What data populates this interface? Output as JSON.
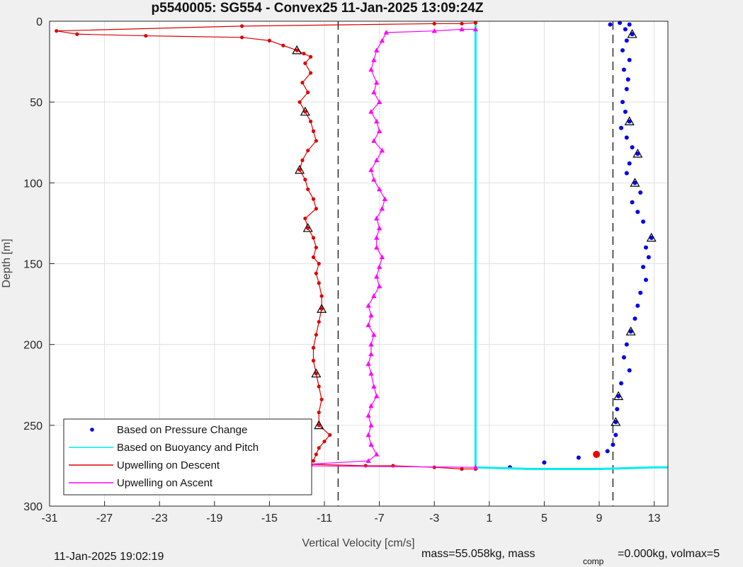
{
  "chart_data": {
    "type": "line",
    "title": "p5540005: SG554 - Convex25 11-Jan-2025 13:09:24Z",
    "xlabel": "Vertical Velocity [cm/s]",
    "ylabel": "Depth [m]",
    "xlim": [
      -31,
      14
    ],
    "ylim": [
      300,
      0
    ],
    "y_reversed": true,
    "xticks": [
      -31,
      -27,
      -23,
      -19,
      -15,
      -11,
      -7,
      -3,
      1,
      5,
      9,
      13
    ],
    "yticks": [
      0,
      50,
      100,
      150,
      200,
      250,
      300
    ],
    "grid": true,
    "legend": {
      "placement": "bottom-left",
      "entries": [
        "Based on Pressure Change",
        "Based on Buoyancy and Pitch",
        "Upwelling on Descent",
        "Upwelling on Ascent"
      ]
    },
    "vlines_dashed": [
      -10,
      10
    ],
    "series": [
      {
        "name": "Based on Pressure Change",
        "color": "#0000ee",
        "style": "dots",
        "points": [
          [
            9.8,
            2
          ],
          [
            10.5,
            1
          ],
          [
            11.2,
            2
          ],
          [
            10.9,
            5
          ],
          [
            11.4,
            8
          ],
          [
            11.0,
            12
          ],
          [
            10.7,
            18
          ],
          [
            11.2,
            24
          ],
          [
            10.8,
            30
          ],
          [
            11.1,
            36
          ],
          [
            11.0,
            42
          ],
          [
            10.7,
            50
          ],
          [
            10.9,
            56
          ],
          [
            11.2,
            62
          ],
          [
            10.6,
            66
          ],
          [
            11.0,
            72
          ],
          [
            11.4,
            78
          ],
          [
            11.8,
            82
          ],
          [
            11.2,
            88
          ],
          [
            11.0,
            94
          ],
          [
            11.6,
            100
          ],
          [
            12.0,
            106
          ],
          [
            11.4,
            112
          ],
          [
            11.8,
            118
          ],
          [
            12.2,
            124
          ],
          [
            12.8,
            134
          ],
          [
            12.4,
            140
          ],
          [
            12.6,
            146
          ],
          [
            12.2,
            152
          ],
          [
            12.4,
            160
          ],
          [
            12.0,
            168
          ],
          [
            11.8,
            176
          ],
          [
            11.6,
            184
          ],
          [
            11.3,
            192
          ],
          [
            11.0,
            200
          ],
          [
            10.8,
            208
          ],
          [
            11.2,
            216
          ],
          [
            10.6,
            224
          ],
          [
            10.4,
            232
          ],
          [
            10.3,
            240
          ],
          [
            10.2,
            248
          ],
          [
            10.2,
            256
          ],
          [
            10.0,
            262
          ],
          [
            9.6,
            266
          ],
          [
            8.8,
            268
          ],
          [
            7.5,
            270
          ],
          [
            5.0,
            273
          ],
          [
            2.5,
            276
          ]
        ]
      },
      {
        "name": "Based on Buoyancy and Pitch",
        "color": "#00eeee",
        "style": "line",
        "points": [
          [
            0,
            2
          ],
          [
            0,
            50
          ],
          [
            0,
            100
          ],
          [
            0,
            150
          ],
          [
            0,
            200
          ],
          [
            0,
            250
          ],
          [
            0,
            276
          ],
          [
            4,
            277
          ],
          [
            9,
            277
          ],
          [
            13,
            276
          ],
          [
            14,
            276
          ]
        ]
      },
      {
        "name": "Upwelling on Descent",
        "color": "#dd0000",
        "style": "line-dots",
        "points": [
          [
            0,
            1
          ],
          [
            -1,
            1.5
          ],
          [
            -3,
            1.5
          ],
          [
            -17,
            3
          ],
          [
            -30.5,
            6
          ],
          [
            -29,
            8
          ],
          [
            -24,
            9
          ],
          [
            -17,
            10
          ],
          [
            -15,
            12
          ],
          [
            -14,
            15
          ],
          [
            -13,
            18
          ],
          [
            -12.5,
            20
          ],
          [
            -12,
            22
          ],
          [
            -12.4,
            26
          ],
          [
            -12,
            32
          ],
          [
            -12.6,
            38
          ],
          [
            -12.2,
            44
          ],
          [
            -12.8,
            50
          ],
          [
            -12.4,
            56
          ],
          [
            -12.0,
            62
          ],
          [
            -11.8,
            68
          ],
          [
            -11.6,
            74
          ],
          [
            -12.2,
            80
          ],
          [
            -12.6,
            86
          ],
          [
            -12.8,
            92
          ],
          [
            -12.4,
            98
          ],
          [
            -12.2,
            104
          ],
          [
            -11.8,
            110
          ],
          [
            -11.6,
            116
          ],
          [
            -12.4,
            122
          ],
          [
            -12.2,
            128
          ],
          [
            -11.8,
            134
          ],
          [
            -11.6,
            140
          ],
          [
            -11.8,
            146
          ],
          [
            -11.4,
            150
          ],
          [
            -11.6,
            156
          ],
          [
            -11.4,
            162
          ],
          [
            -11.2,
            170
          ],
          [
            -11.2,
            178
          ],
          [
            -11.4,
            186
          ],
          [
            -11.6,
            194
          ],
          [
            -11.8,
            202
          ],
          [
            -11.8,
            210
          ],
          [
            -11.6,
            218
          ],
          [
            -11.4,
            226
          ],
          [
            -11.2,
            234
          ],
          [
            -11.4,
            242
          ],
          [
            -11.4,
            250
          ],
          [
            -10.6,
            256
          ],
          [
            -11.0,
            260
          ],
          [
            -11.4,
            264
          ],
          [
            -11.6,
            268
          ],
          [
            -11.8,
            272
          ],
          [
            -12.6,
            274
          ],
          [
            -8,
            275
          ],
          [
            -6,
            275
          ],
          [
            -3,
            276
          ],
          [
            -1,
            277
          ],
          [
            0,
            277
          ]
        ]
      },
      {
        "name": "Upwelling on Ascent",
        "color": "#ff00ff",
        "style": "line-triangles",
        "points": [
          [
            0,
            5
          ],
          [
            -1,
            5
          ],
          [
            -3,
            6
          ],
          [
            -6.5,
            7
          ],
          [
            -6.8,
            12
          ],
          [
            -7.2,
            18
          ],
          [
            -7.4,
            24
          ],
          [
            -7.6,
            30
          ],
          [
            -7.2,
            38
          ],
          [
            -7.4,
            44
          ],
          [
            -7.0,
            50
          ],
          [
            -7.6,
            56
          ],
          [
            -7.2,
            62
          ],
          [
            -7.0,
            68
          ],
          [
            -7.4,
            74
          ],
          [
            -6.8,
            80
          ],
          [
            -7.2,
            86
          ],
          [
            -7.6,
            92
          ],
          [
            -7.4,
            98
          ],
          [
            -7.0,
            104
          ],
          [
            -6.6,
            110
          ],
          [
            -6.8,
            116
          ],
          [
            -7.2,
            122
          ],
          [
            -7.0,
            128
          ],
          [
            -7.2,
            134
          ],
          [
            -7.2,
            140
          ],
          [
            -6.8,
            146
          ],
          [
            -7.0,
            152
          ],
          [
            -7.2,
            158
          ],
          [
            -7.0,
            164
          ],
          [
            -7.4,
            170
          ],
          [
            -7.8,
            176
          ],
          [
            -7.6,
            182
          ],
          [
            -7.8,
            188
          ],
          [
            -7.4,
            194
          ],
          [
            -7.6,
            200
          ],
          [
            -7.6,
            206
          ],
          [
            -7.8,
            212
          ],
          [
            -7.6,
            218
          ],
          [
            -7.4,
            226
          ],
          [
            -7.2,
            232
          ],
          [
            -7.6,
            238
          ],
          [
            -7.8,
            244
          ],
          [
            -7.6,
            250
          ],
          [
            -7.8,
            256
          ],
          [
            -7.6,
            262
          ],
          [
            -7.2,
            268
          ],
          [
            -7.8,
            272
          ],
          [
            -12.0,
            274
          ],
          [
            -13.0,
            275
          ],
          [
            0,
            276
          ]
        ]
      }
    ],
    "markers": [
      {
        "x": 8.8,
        "y": 268,
        "color": "#ee0000"
      }
    ]
  },
  "footer": {
    "timestamp": "11-Jan-2025 19:02:19",
    "mass_text": "mass=55.058kg, mass",
    "comp_sub": "comp",
    "mass_comp_text": "=0.000kg, volmax=5"
  },
  "colors": {
    "background": "#f0f0f0",
    "axes_bg": "#ffffff",
    "grid": "#e0e0e0",
    "descent": "#dd0000",
    "ascent": "#ff00ff",
    "pressure": "#0000ee",
    "buoyancy": "#00eeee"
  }
}
